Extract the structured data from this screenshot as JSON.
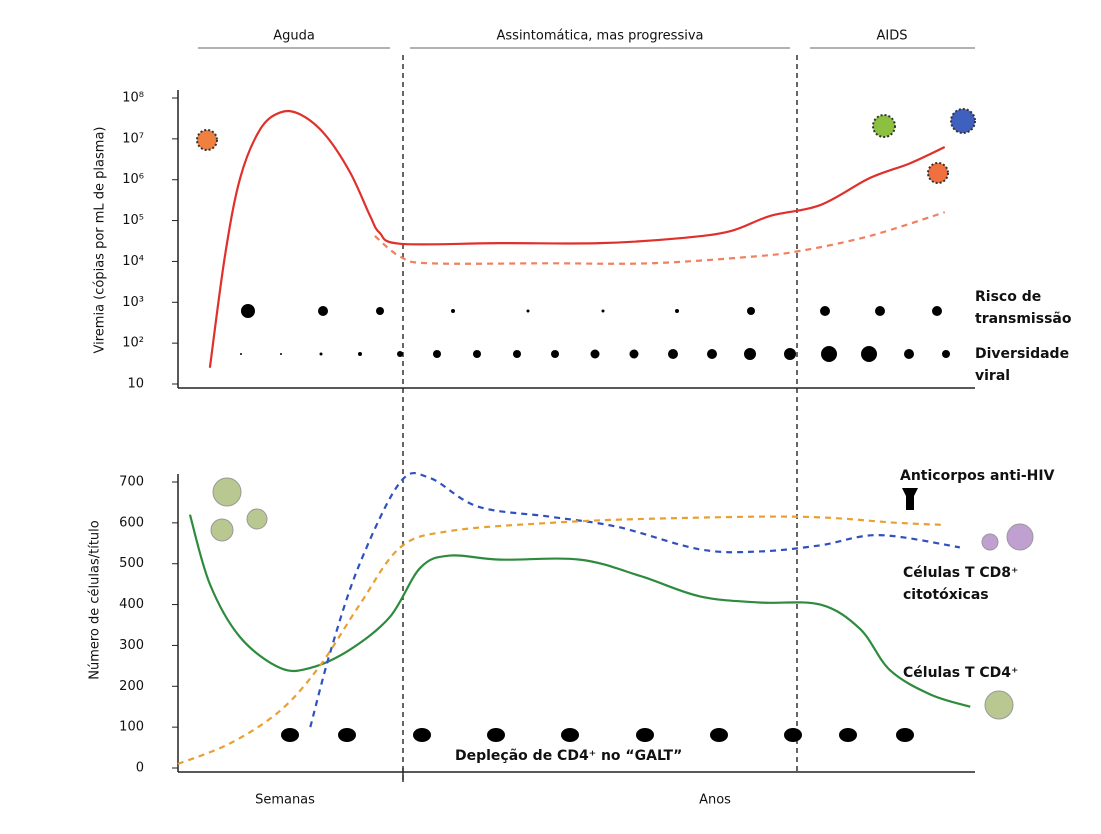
{
  "phases": [
    "Aguda",
    "Assintomática, mas progressiva",
    "AIDS"
  ],
  "x_labels": [
    "Semanas",
    "Anos"
  ],
  "chart_data": [
    {
      "type": "line",
      "ylabel": "Viremia (cópias por mL de plasma)",
      "log": true,
      "xlim": [
        0,
        100
      ],
      "ylim": [
        10,
        100000000
      ],
      "yticks": [
        {
          "value": 100000000,
          "label": "10⁸"
        },
        {
          "value": 10000000,
          "label": "10⁷"
        },
        {
          "value": 1000000,
          "label": "10⁶"
        },
        {
          "value": 100000,
          "label": "10⁵"
        },
        {
          "value": 10000,
          "label": "10⁴"
        },
        {
          "value": 1000,
          "label": "10³"
        },
        {
          "value": 100,
          "label": "10²"
        },
        10
      ],
      "series": [
        {
          "color": "#e0302c",
          "dash": false,
          "x": [
            4,
            5.9,
            7.8,
            10.3,
            12.8,
            15.3,
            18.4,
            21.6,
            24.1,
            25.3,
            27.9,
            40.4,
            52.9,
            63,
            69.3,
            74.3,
            80.6,
            86.8,
            91.8,
            96.2
          ],
          "values": [
            25,
            14000,
            1100000,
            17000000,
            44000000,
            40000000,
            13000000,
            1500000,
            130000,
            50000,
            27000,
            28000,
            28000,
            37000,
            55000,
            130000,
            240000,
            1100000,
            2500000,
            6300000
          ]
        },
        {
          "color": "#f08060",
          "dash": true,
          "x": [
            24.7,
            27.9,
            31.6,
            46.7,
            59.2,
            71.8,
            78,
            86.8,
            96.2
          ],
          "values": [
            42000,
            13000,
            9000,
            9000,
            9000,
            13000,
            18000,
            42000,
            160000
          ]
        }
      ],
      "annotations": [
        [
          "Risco de",
          "transmissão"
        ],
        [
          "Diversidade",
          "viral"
        ]
      ]
    },
    {
      "type": "line",
      "ylabel": "Número de células/título",
      "log": false,
      "xlim": [
        0,
        100
      ],
      "ylim": [
        0,
        700
      ],
      "yticks": [
        0,
        100,
        200,
        300,
        400,
        500,
        600,
        700
      ],
      "series": [
        {
          "color": "#2e8b3e",
          "dash": false,
          "x": [
            1.5,
            4,
            7.8,
            12.8,
            16.6,
            21.6,
            26.6,
            30.4,
            34.1,
            40.4,
            50.4,
            58,
            65.5,
            73,
            80.6,
            85.6,
            89.3,
            94.4,
            99.4
          ],
          "values": [
            620,
            450,
            320,
            245,
            245,
            290,
            370,
            490,
            520,
            510,
            510,
            470,
            420,
            405,
            400,
            340,
            240,
            180,
            150
          ]
        },
        {
          "color": "#3050c0",
          "dash": true,
          "x": [
            16.6,
            19.2,
            22.8,
            27.9,
            31.6,
            37.6,
            46.7,
            55.2,
            65.5,
            73,
            80.6,
            88,
            98.1
          ],
          "values": [
            100,
            290,
            500,
            700,
            710,
            640,
            615,
            590,
            535,
            530,
            545,
            570,
            540
          ]
        },
        {
          "color": "#e8a030",
          "dash": true,
          "x": [
            0,
            6.5,
            12.8,
            17.8,
            22.8,
            27.9,
            34.1,
            46.7,
            59.2,
            78,
            90.3,
            96.2
          ],
          "values": [
            10,
            60,
            140,
            250,
            400,
            540,
            580,
            600,
            610,
            615,
            600,
            595
          ]
        }
      ],
      "annotations": [
        [
          "Anticorpos anti-HIV"
        ],
        [
          "Células T CD8⁺",
          "citotóxicas"
        ],
        [
          "Células T CD4⁺"
        ],
        [
          "Depleção de CD4⁺ no “GALT”"
        ]
      ]
    }
  ]
}
